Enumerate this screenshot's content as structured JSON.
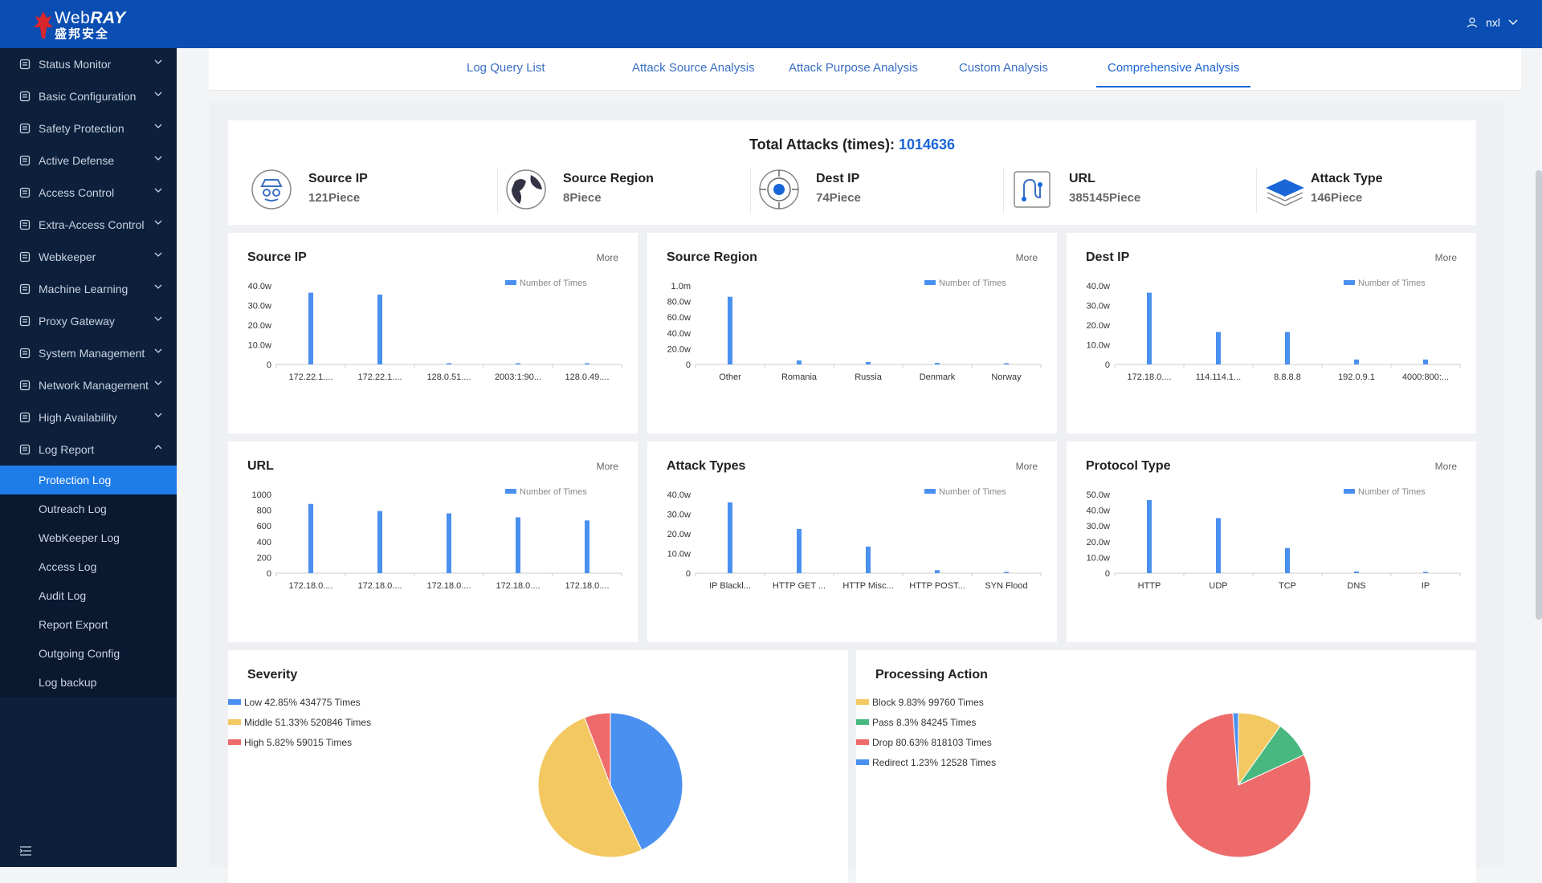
{
  "brand": {
    "name_en_plain": "Web",
    "name_en_bold": "RAY",
    "name_cn": "盛邦安全"
  },
  "user": {
    "name": "nxl"
  },
  "sidebar": {
    "items": [
      {
        "label": "Status Monitor",
        "icon": "monitor-icon"
      },
      {
        "label": "Basic Configuration",
        "icon": "config-icon"
      },
      {
        "label": "Safety Protection",
        "icon": "shield-icon"
      },
      {
        "label": "Active Defense",
        "icon": "defense-icon"
      },
      {
        "label": "Access Control",
        "icon": "grid-icon"
      },
      {
        "label": "Extra-Access Control",
        "icon": "target-icon"
      },
      {
        "label": "Webkeeper",
        "icon": "webkeeper-icon"
      },
      {
        "label": "Machine Learning",
        "icon": "learning-icon"
      },
      {
        "label": "Proxy Gateway",
        "icon": "gateway-icon"
      },
      {
        "label": "System Management",
        "icon": "system-icon"
      },
      {
        "label": "Network Management",
        "icon": "globe-icon"
      },
      {
        "label": "High Availability",
        "icon": "availability-icon"
      },
      {
        "label": "Log Report",
        "icon": "report-icon"
      }
    ],
    "log_report_sub": [
      {
        "label": "Protection Log",
        "active": true
      },
      {
        "label": "Outreach Log"
      },
      {
        "label": "WebKeeper Log"
      },
      {
        "label": "Access Log"
      },
      {
        "label": "Audit Log"
      },
      {
        "label": "Report Export"
      },
      {
        "label": "Outgoing Config"
      },
      {
        "label": "Log backup"
      }
    ]
  },
  "tabs": [
    {
      "label": "Log Query List"
    },
    {
      "label": "Attack Source Analysis"
    },
    {
      "label": "Attack Purpose Analysis"
    },
    {
      "label": "Custom Analysis"
    },
    {
      "label": "Comprehensive Analysis",
      "active": true
    }
  ],
  "summary": {
    "title": "Total Attacks (times):",
    "total": "1014636",
    "stats": [
      {
        "label": "Source IP",
        "value": "121Piece",
        "icon": "spy-icon"
      },
      {
        "label": "Source Region",
        "value": "8Piece",
        "icon": "globe-icon"
      },
      {
        "label": "Dest IP",
        "value": "74Piece",
        "icon": "target-icon"
      },
      {
        "label": "URL",
        "value": "385145Piece",
        "icon": "route-icon"
      },
      {
        "label": "Attack Type",
        "value": "146Piece",
        "icon": "layers-icon"
      }
    ]
  },
  "more_label": "More",
  "colors": {
    "bar": "#4a90f0",
    "low": "#4a90f0",
    "middle": "#f3c861",
    "high": "#ee6b6b",
    "pass": "#48b880"
  },
  "chart_data": [
    {
      "id": "source-ip",
      "type": "bar",
      "title": "Source IP",
      "legend": "Number of Times",
      "categories": [
        "172.22.1....",
        "172.22.1....",
        "128.0.51....",
        "2003:1:90...",
        "128.0.49...."
      ],
      "values": [
        36.5,
        35.5,
        0.3,
        0.3,
        0.3
      ],
      "yticks": [
        "0",
        "10.0w",
        "20.0w",
        "30.0w",
        "40.0w"
      ],
      "ylim": [
        0,
        40
      ]
    },
    {
      "id": "source-region",
      "type": "bar",
      "title": "Source Region",
      "legend": "Number of Times",
      "categories": [
        "Other",
        "Romania",
        "Russia",
        "Denmark",
        "Norway"
      ],
      "values": [
        86,
        5,
        3,
        2,
        1
      ],
      "yticks": [
        "0",
        "20.0w",
        "40.0w",
        "60.0w",
        "80.0w",
        "1.0m"
      ],
      "ylim": [
        0,
        100
      ]
    },
    {
      "id": "dest-ip",
      "type": "bar",
      "title": "Dest IP",
      "legend": "Number of Times",
      "categories": [
        "172.18.0....",
        "114.114.1...",
        "8.8.8.8",
        "192.0.9.1",
        "4000:800:..."
      ],
      "values": [
        36.5,
        16.5,
        16.5,
        2.5,
        2.5
      ],
      "yticks": [
        "0",
        "10.0w",
        "20.0w",
        "30.0w",
        "40.0w"
      ],
      "ylim": [
        0,
        40
      ]
    },
    {
      "id": "url",
      "type": "bar",
      "title": "URL",
      "legend": "Number of Times",
      "categories": [
        "172.18.0....",
        "172.18.0....",
        "172.18.0....",
        "172.18.0....",
        "172.18.0...."
      ],
      "values": [
        880,
        790,
        760,
        710,
        670
      ],
      "yticks": [
        "0",
        "200",
        "400",
        "600",
        "800",
        "1000"
      ],
      "ylim": [
        0,
        1000
      ]
    },
    {
      "id": "attack-types",
      "type": "bar",
      "title": "Attack Types",
      "legend": "Number of Times",
      "categories": [
        "IP Blackl...",
        "HTTP GET ...",
        "HTTP Misc...",
        "HTTP POST...",
        "SYN Flood"
      ],
      "values": [
        36,
        22.5,
        13.5,
        1.5,
        0.5
      ],
      "yticks": [
        "0",
        "10.0w",
        "20.0w",
        "30.0w",
        "40.0w"
      ],
      "ylim": [
        0,
        40
      ]
    },
    {
      "id": "protocol-type",
      "type": "bar",
      "title": "Protocol Type",
      "legend": "Number of Times",
      "categories": [
        "HTTP",
        "UDP",
        "TCP",
        "DNS",
        "IP"
      ],
      "values": [
        46.5,
        35,
        16,
        1,
        0.5
      ],
      "yticks": [
        "0",
        "10.0w",
        "20.0w",
        "30.0w",
        "40.0w",
        "50.0w"
      ],
      "ylim": [
        0,
        50
      ]
    },
    {
      "id": "severity",
      "type": "pie",
      "title": "Severity",
      "slices": [
        {
          "label": "Low 42.85% 434775 Times",
          "value": 42.85,
          "color": "#4a90f0"
        },
        {
          "label": "Middle 51.33% 520846 Times",
          "value": 51.33,
          "color": "#f3c861"
        },
        {
          "label": "High 5.82% 59015 Times",
          "value": 5.82,
          "color": "#ee6b6b"
        }
      ]
    },
    {
      "id": "processing-action",
      "type": "pie",
      "title": "Processing Action",
      "slices": [
        {
          "label": "Block 9.83% 99760 Times",
          "value": 9.83,
          "color": "#f3c861"
        },
        {
          "label": "Pass 8.3% 84245 Times",
          "value": 8.3,
          "color": "#48b880"
        },
        {
          "label": "Drop 80.63% 818103 Times",
          "value": 80.63,
          "color": "#ee6b6b"
        },
        {
          "label": "Redirect 1.23% 12528 Times",
          "value": 1.23,
          "color": "#4a90f0"
        }
      ]
    }
  ]
}
